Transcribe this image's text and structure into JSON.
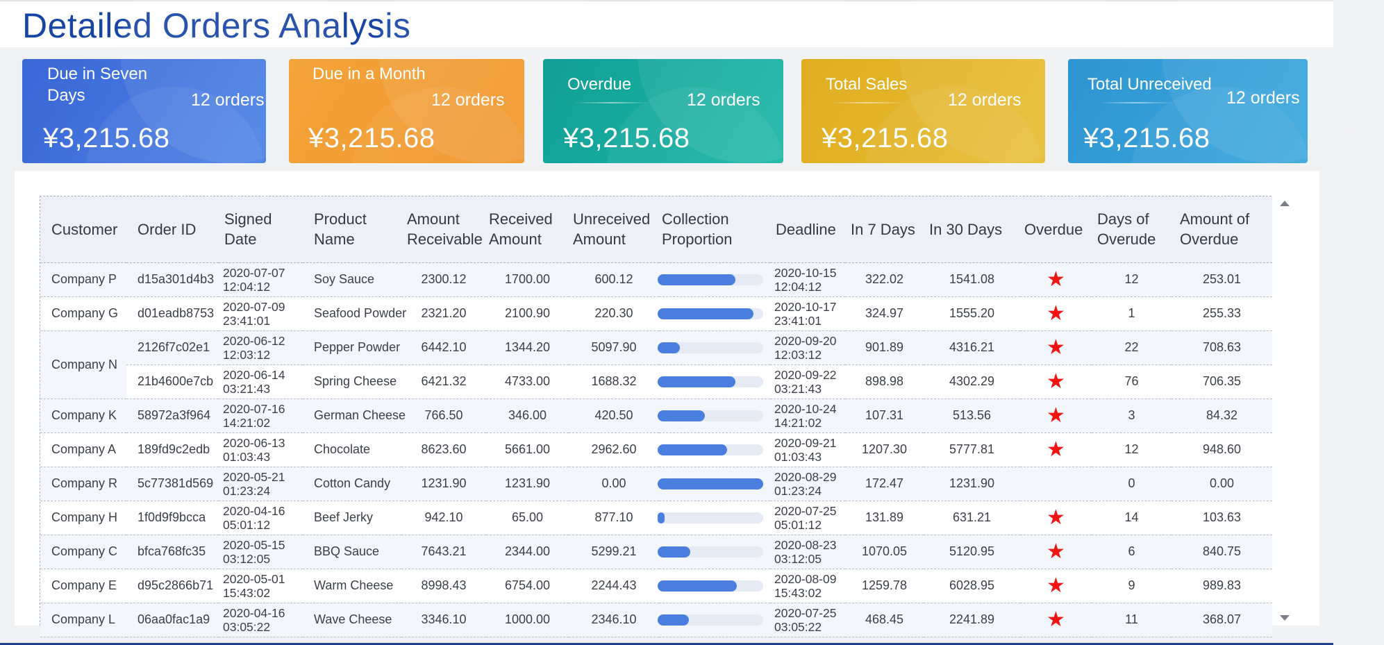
{
  "page": {
    "title": "Detailed Orders Analysis"
  },
  "cards": [
    {
      "label": "Due in Seven Days",
      "count": "12 orders",
      "amount": "¥3,215.68",
      "color": "#3f72dc"
    },
    {
      "label": "Due in a Month",
      "count": "12 orders",
      "amount": "¥3,215.68",
      "color": "#f29a2b"
    },
    {
      "label": "Overdue",
      "count": "12 orders",
      "amount": "¥3,215.68",
      "color": "#16ada1"
    },
    {
      "label": "Total Sales",
      "count": "12 orders",
      "amount": "¥3,215.68",
      "color": "#e3b426"
    },
    {
      "label": "Total Unreceived",
      "count": "12 orders",
      "amount": "¥3,215.68",
      "color": "#339fd8"
    }
  ],
  "table": {
    "columns": [
      "Customer",
      "Order ID",
      "Signed Date",
      "Product Name",
      "Amount Receivable",
      "Received Amount",
      "Unreceived Amount",
      "Collection Proportion",
      "Deadline",
      "In 7 Days",
      "In 30 Days",
      "Overdue",
      "Days of Overude",
      "Amount of Overdue"
    ],
    "rows": [
      {
        "customer": "Company P",
        "order_id": "d15a301d4b3",
        "signed_date": "2020-07-07",
        "signed_time": "12:04:12",
        "product": "Soy Sauce",
        "receivable": "2300.12",
        "received": "1700.00",
        "unreceived": "600.12",
        "proportion": 0.74,
        "deadline_date": "2020-10-15",
        "deadline_time": "12:04:12",
        "in7": "322.02",
        "in30": "1541.08",
        "overdue": true,
        "days_overdue": "12",
        "amount_overdue": "253.01"
      },
      {
        "customer": "Company G",
        "order_id": "d01eadb8753",
        "signed_date": "2020-07-09",
        "signed_time": "23:41:01",
        "product": "Seafood Powder",
        "receivable": "2321.20",
        "received": "2100.90",
        "unreceived": "220.30",
        "proportion": 0.905,
        "deadline_date": "2020-10-17",
        "deadline_time": "23:41:01",
        "in7": "324.97",
        "in30": "1555.20",
        "overdue": true,
        "days_overdue": "1",
        "amount_overdue": "255.33"
      },
      {
        "customer": "Company N",
        "order_id": "2126f7c02e1",
        "signed_date": "2020-06-12",
        "signed_time": "12:03:12",
        "product": "Pepper Powder",
        "receivable": "6442.10",
        "received": "1344.20",
        "unreceived": "5097.90",
        "proportion": 0.21,
        "deadline_date": "2020-09-20",
        "deadline_time": "12:03:12",
        "in7": "901.89",
        "in30": "4316.21",
        "overdue": true,
        "days_overdue": "22",
        "amount_overdue": "708.63"
      },
      {
        "customer": "",
        "order_id": "21b4600e7cb",
        "signed_date": "2020-06-14",
        "signed_time": "03:21:43",
        "product": "Spring Cheese",
        "receivable": "6421.32",
        "received": "4733.00",
        "unreceived": "1688.32",
        "proportion": 0.737,
        "deadline_date": "2020-09-22",
        "deadline_time": "03:21:43",
        "in7": "898.98",
        "in30": "4302.29",
        "overdue": true,
        "days_overdue": "76",
        "amount_overdue": "706.35"
      },
      {
        "customer": "Company K",
        "order_id": "58972a3f964",
        "signed_date": "2020-07-16",
        "signed_time": "14:21:02",
        "product": "German Cheese",
        "receivable": "766.50",
        "received": "346.00",
        "unreceived": "420.50",
        "proportion": 0.45,
        "deadline_date": "2020-10-24",
        "deadline_time": "14:21:02",
        "in7": "107.31",
        "in30": "513.56",
        "overdue": true,
        "days_overdue": "3",
        "amount_overdue": "84.32"
      },
      {
        "customer": "Company A",
        "order_id": "189fd9c2edb",
        "signed_date": "2020-06-13",
        "signed_time": "01:03:43",
        "product": "Chocolate",
        "receivable": "8623.60",
        "received": "5661.00",
        "unreceived": "2962.60",
        "proportion": 0.656,
        "deadline_date": "2020-09-21",
        "deadline_time": "01:03:43",
        "in7": "1207.30",
        "in30": "5777.81",
        "overdue": true,
        "days_overdue": "12",
        "amount_overdue": "948.60"
      },
      {
        "customer": "Company R",
        "order_id": "5c77381d569",
        "signed_date": "2020-05-21",
        "signed_time": "01:23:24",
        "product": "Cotton Candy",
        "receivable": "1231.90",
        "received": "1231.90",
        "unreceived": "0.00",
        "proportion": 1.0,
        "deadline_date": "2020-08-29",
        "deadline_time": "01:23:24",
        "in7": "172.47",
        "in30": "1231.90",
        "overdue": false,
        "days_overdue": "0",
        "amount_overdue": "0.00"
      },
      {
        "customer": "Company H",
        "order_id": "1f0d9f9bcca",
        "signed_date": "2020-04-16",
        "signed_time": "05:01:12",
        "product": "Beef Jerky",
        "receivable": "942.10",
        "received": "65.00",
        "unreceived": "877.10",
        "proportion": 0.069,
        "deadline_date": "2020-07-25",
        "deadline_time": "05:01:12",
        "in7": "131.89",
        "in30": "631.21",
        "overdue": true,
        "days_overdue": "14",
        "amount_overdue": "103.63"
      },
      {
        "customer": "Company C",
        "order_id": "bfca768fc35",
        "signed_date": "2020-05-15",
        "signed_time": "03:12:05",
        "product": "BBQ Sauce",
        "receivable": "7643.21",
        "received": "2344.00",
        "unreceived": "5299.21",
        "proportion": 0.307,
        "deadline_date": "2020-08-23",
        "deadline_time": "03:12:05",
        "in7": "1070.05",
        "in30": "5120.95",
        "overdue": true,
        "days_overdue": "6",
        "amount_overdue": "840.75"
      },
      {
        "customer": "Company E",
        "order_id": "d95c2866b71",
        "signed_date": "2020-05-01",
        "signed_time": "15:43:02",
        "product": "Warm Cheese",
        "receivable": "8998.43",
        "received": "6754.00",
        "unreceived": "2244.43",
        "proportion": 0.75,
        "deadline_date": "2020-08-09",
        "deadline_time": "15:43:02",
        "in7": "1259.78",
        "in30": "6028.95",
        "overdue": true,
        "days_overdue": "9",
        "amount_overdue": "989.83"
      },
      {
        "customer": "Company L",
        "order_id": "06aa0fac1a9",
        "signed_date": "2020-04-16",
        "signed_time": "03:05:22",
        "product": "Wave Cheese",
        "receivable": "3346.10",
        "received": "1000.00",
        "unreceived": "2346.10",
        "proportion": 0.299,
        "deadline_date": "2020-07-25",
        "deadline_time": "03:05:22",
        "in7": "468.45",
        "in30": "2241.89",
        "overdue": true,
        "days_overdue": "11",
        "amount_overdue": "368.07"
      }
    ]
  },
  "icons": {
    "overdue": "star-icon",
    "scroll_up": "caret-up-icon",
    "scroll_down": "caret-down-icon"
  },
  "colors": {
    "title": "#1745a6",
    "bar_fill": "#4a7fe0",
    "bar_track": "#e6eaf2",
    "star": "#f21313"
  }
}
